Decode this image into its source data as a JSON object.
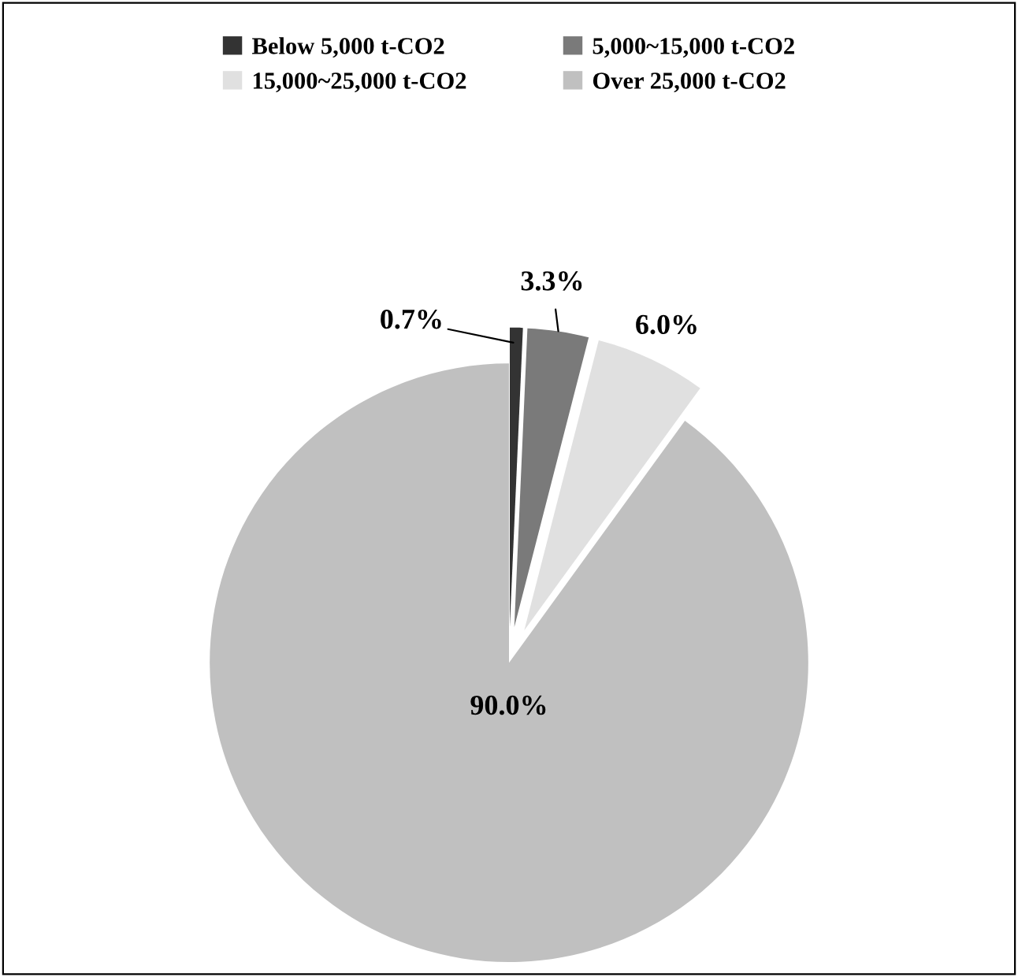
{
  "chart_data": {
    "type": "pie",
    "categories": [
      "Below 5,000 t-CO2",
      "5,000~15,000 t-CO2",
      "15,000~25,000 t-CO2",
      "Over 25,000 t-CO2"
    ],
    "values": [
      0.7,
      3.3,
      6.0,
      90.0
    ],
    "colors": [
      "#333333",
      "#7a7a7a",
      "#e0e0e0",
      "#c0c0c0"
    ],
    "value_labels": [
      "0.7%",
      "3.3%",
      "6.0%",
      "90.0%"
    ],
    "legend": "top"
  }
}
